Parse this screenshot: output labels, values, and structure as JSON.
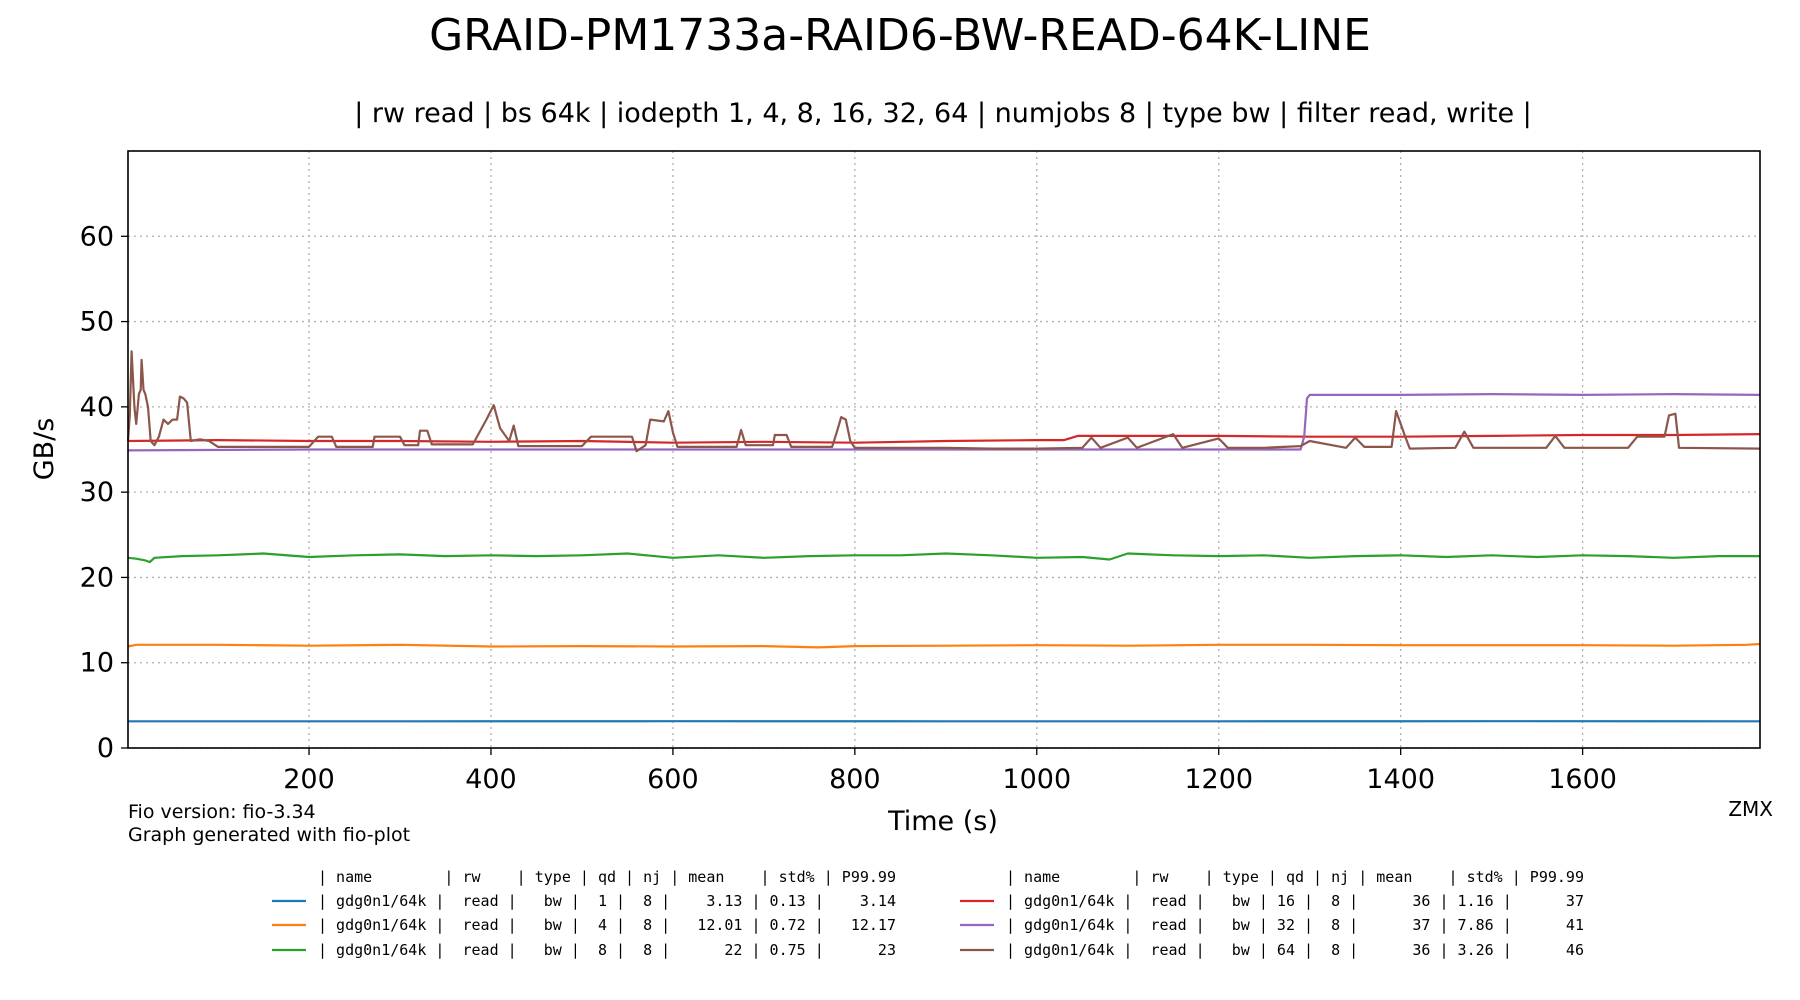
{
  "chart_data": {
    "type": "line",
    "title": "GRAID-PM1733a-RAID6-BW-READ-64K-LINE",
    "subtitle": "| rw read | bs 64k | iodepth 1, 4, 8, 16, 32, 64 | numjobs 8 | type bw | filter read, write |",
    "xlabel": "Time (s)",
    "ylabel": "GB/s",
    "xlim": [
      1,
      1795
    ],
    "ylim": [
      0,
      70
    ],
    "x_ticks": [
      200,
      400,
      600,
      800,
      1000,
      1200,
      1400,
      1600
    ],
    "y_ticks": [
      0,
      10,
      20,
      30,
      40,
      50,
      60
    ],
    "grid": true,
    "footer_left": [
      "Fio version: fio-3.34",
      "Graph generated with fio-plot"
    ],
    "footer_right": "ZMX",
    "table_header": "| name        | rw    | type | qd | nj | mean    | std% | P99.99",
    "series": [
      {
        "color": "#1f77b4",
        "row": "| gdg0n1/64k |  read |   bw |  1 |  8 |    3.13 | 0.13 |    3.14",
        "points": [
          [
            1,
            3.13
          ],
          [
            300,
            3.13
          ],
          [
            600,
            3.14
          ],
          [
            900,
            3.13
          ],
          [
            1200,
            3.13
          ],
          [
            1500,
            3.14
          ],
          [
            1795,
            3.13
          ]
        ]
      },
      {
        "color": "#ff7f0e",
        "row": "| gdg0n1/64k |  read |   bw |  4 |  8 |   12.01 | 0.72 |   12.17",
        "points": [
          [
            1,
            11.9
          ],
          [
            10,
            12.1
          ],
          [
            100,
            12.1
          ],
          [
            200,
            12.0
          ],
          [
            300,
            12.1
          ],
          [
            400,
            11.9
          ],
          [
            500,
            11.95
          ],
          [
            600,
            11.9
          ],
          [
            700,
            11.95
          ],
          [
            760,
            11.8
          ],
          [
            800,
            11.95
          ],
          [
            900,
            12.0
          ],
          [
            1000,
            12.05
          ],
          [
            1100,
            12.0
          ],
          [
            1200,
            12.1
          ],
          [
            1300,
            12.1
          ],
          [
            1400,
            12.05
          ],
          [
            1500,
            12.05
          ],
          [
            1600,
            12.05
          ],
          [
            1700,
            12.0
          ],
          [
            1780,
            12.1
          ],
          [
            1795,
            12.2
          ]
        ]
      },
      {
        "color": "#2ca02c",
        "row": "| gdg0n1/64k |  read |   bw |  8 |  8 |      22 | 0.75 |      23",
        "points": [
          [
            1,
            22.3
          ],
          [
            10,
            22.2
          ],
          [
            20,
            22.0
          ],
          [
            25,
            21.8
          ],
          [
            30,
            22.3
          ],
          [
            60,
            22.5
          ],
          [
            100,
            22.6
          ],
          [
            150,
            22.8
          ],
          [
            200,
            22.4
          ],
          [
            250,
            22.6
          ],
          [
            300,
            22.7
          ],
          [
            350,
            22.5
          ],
          [
            400,
            22.6
          ],
          [
            450,
            22.5
          ],
          [
            500,
            22.6
          ],
          [
            550,
            22.8
          ],
          [
            600,
            22.3
          ],
          [
            650,
            22.6
          ],
          [
            700,
            22.3
          ],
          [
            750,
            22.5
          ],
          [
            800,
            22.6
          ],
          [
            850,
            22.6
          ],
          [
            900,
            22.8
          ],
          [
            950,
            22.6
          ],
          [
            1000,
            22.3
          ],
          [
            1050,
            22.4
          ],
          [
            1080,
            22.1
          ],
          [
            1100,
            22.8
          ],
          [
            1150,
            22.6
          ],
          [
            1200,
            22.5
          ],
          [
            1250,
            22.6
          ],
          [
            1300,
            22.3
          ],
          [
            1350,
            22.5
          ],
          [
            1400,
            22.6
          ],
          [
            1450,
            22.4
          ],
          [
            1500,
            22.6
          ],
          [
            1550,
            22.4
          ],
          [
            1600,
            22.6
          ],
          [
            1650,
            22.5
          ],
          [
            1700,
            22.3
          ],
          [
            1750,
            22.5
          ],
          [
            1795,
            22.5
          ]
        ]
      },
      {
        "color": "#d62728",
        "row": "| gdg0n1/64k |  read |   bw | 16 |  8 |      36 | 1.16 |      37",
        "points": [
          [
            1,
            36.0
          ],
          [
            100,
            36.1
          ],
          [
            200,
            36.0
          ],
          [
            300,
            36.0
          ],
          [
            400,
            35.9
          ],
          [
            500,
            36.0
          ],
          [
            600,
            35.8
          ],
          [
            700,
            35.9
          ],
          [
            800,
            35.8
          ],
          [
            900,
            36.0
          ],
          [
            1000,
            36.1
          ],
          [
            1030,
            36.1
          ],
          [
            1045,
            36.6
          ],
          [
            1100,
            36.6
          ],
          [
            1200,
            36.6
          ],
          [
            1300,
            36.5
          ],
          [
            1400,
            36.5
          ],
          [
            1500,
            36.6
          ],
          [
            1600,
            36.7
          ],
          [
            1700,
            36.7
          ],
          [
            1795,
            36.8
          ]
        ]
      },
      {
        "color": "#9467bd",
        "row": "| gdg0n1/64k |  read |   bw | 32 |  8 |      37 | 7.86 |      41",
        "points": [
          [
            1,
            34.9
          ],
          [
            200,
            35.0
          ],
          [
            400,
            35.0
          ],
          [
            600,
            35.0
          ],
          [
            800,
            35.0
          ],
          [
            1000,
            35.0
          ],
          [
            1200,
            35.0
          ],
          [
            1290,
            35.0
          ],
          [
            1294,
            36.5
          ],
          [
            1297,
            41.0
          ],
          [
            1300,
            41.4
          ],
          [
            1400,
            41.4
          ],
          [
            1500,
            41.5
          ],
          [
            1600,
            41.4
          ],
          [
            1700,
            41.5
          ],
          [
            1795,
            41.4
          ]
        ]
      },
      {
        "color": "#8c564b",
        "row": "| gdg0n1/64k |  read |   bw | 64 |  8 |      36 | 3.26 |      46",
        "points": [
          [
            1,
            36.0
          ],
          [
            3,
            39.0
          ],
          [
            5,
            46.5
          ],
          [
            8,
            40.0
          ],
          [
            10,
            38.0
          ],
          [
            13,
            41.5
          ],
          [
            15,
            42.0
          ],
          [
            16,
            45.5
          ],
          [
            18,
            42.0
          ],
          [
            20,
            41.5
          ],
          [
            23,
            40.0
          ],
          [
            26,
            36.0
          ],
          [
            30,
            35.5
          ],
          [
            35,
            36.5
          ],
          [
            40,
            38.5
          ],
          [
            45,
            38.0
          ],
          [
            50,
            38.5
          ],
          [
            55,
            38.5
          ],
          [
            58,
            41.2
          ],
          [
            62,
            41.0
          ],
          [
            66,
            40.5
          ],
          [
            70,
            36.0
          ],
          [
            80,
            36.2
          ],
          [
            90,
            36.0
          ],
          [
            100,
            35.3
          ],
          [
            150,
            35.3
          ],
          [
            200,
            35.3
          ],
          [
            210,
            36.5
          ],
          [
            225,
            36.5
          ],
          [
            230,
            35.3
          ],
          [
            270,
            35.3
          ],
          [
            272,
            36.5
          ],
          [
            300,
            36.5
          ],
          [
            305,
            35.5
          ],
          [
            320,
            35.5
          ],
          [
            322,
            37.2
          ],
          [
            330,
            37.2
          ],
          [
            335,
            35.6
          ],
          [
            380,
            35.6
          ],
          [
            395,
            38.5
          ],
          [
            403,
            40.2
          ],
          [
            410,
            37.5
          ],
          [
            420,
            36.0
          ],
          [
            425,
            37.8
          ],
          [
            430,
            35.4
          ],
          [
            500,
            35.4
          ],
          [
            510,
            36.5
          ],
          [
            555,
            36.5
          ],
          [
            560,
            34.8
          ],
          [
            570,
            35.5
          ],
          [
            575,
            38.5
          ],
          [
            590,
            38.3
          ],
          [
            595,
            39.5
          ],
          [
            600,
            37.0
          ],
          [
            605,
            35.3
          ],
          [
            670,
            35.3
          ],
          [
            675,
            37.3
          ],
          [
            680,
            35.5
          ],
          [
            710,
            35.5
          ],
          [
            712,
            36.7
          ],
          [
            725,
            36.7
          ],
          [
            730,
            35.3
          ],
          [
            775,
            35.3
          ],
          [
            780,
            37.0
          ],
          [
            785,
            38.8
          ],
          [
            790,
            38.5
          ],
          [
            795,
            36.0
          ],
          [
            800,
            35.2
          ],
          [
            900,
            35.2
          ],
          [
            950,
            35.1
          ],
          [
            1000,
            35.1
          ],
          [
            1050,
            35.2
          ],
          [
            1060,
            36.4
          ],
          [
            1070,
            35.2
          ],
          [
            1100,
            36.4
          ],
          [
            1110,
            35.2
          ],
          [
            1150,
            36.8
          ],
          [
            1160,
            35.2
          ],
          [
            1200,
            36.3
          ],
          [
            1210,
            35.2
          ],
          [
            1250,
            35.2
          ],
          [
            1290,
            35.4
          ],
          [
            1300,
            36.0
          ],
          [
            1340,
            35.2
          ],
          [
            1350,
            36.4
          ],
          [
            1360,
            35.3
          ],
          [
            1390,
            35.3
          ],
          [
            1395,
            39.5
          ],
          [
            1400,
            38.0
          ],
          [
            1405,
            36.5
          ],
          [
            1410,
            35.1
          ],
          [
            1460,
            35.2
          ],
          [
            1470,
            37.1
          ],
          [
            1480,
            35.2
          ],
          [
            1560,
            35.2
          ],
          [
            1570,
            36.6
          ],
          [
            1580,
            35.2
          ],
          [
            1650,
            35.2
          ],
          [
            1660,
            36.5
          ],
          [
            1690,
            36.5
          ],
          [
            1695,
            39.0
          ],
          [
            1702,
            39.2
          ],
          [
            1706,
            35.2
          ],
          [
            1795,
            35.1
          ]
        ]
      }
    ]
  }
}
